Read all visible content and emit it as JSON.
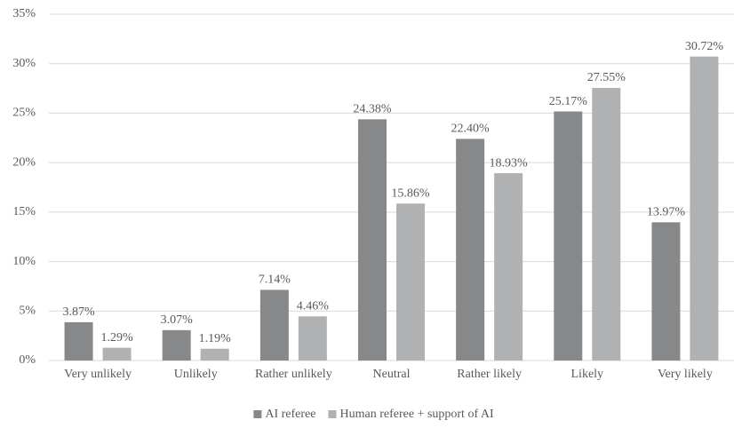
{
  "chart_data": {
    "type": "bar",
    "categories": [
      "Very unlikely",
      "Unlikely",
      "Rather unlikely",
      "Neutral",
      "Rather likely",
      "Likely",
      "Very likely"
    ],
    "series": [
      {
        "name": "AI referee",
        "color": "#87888a",
        "values": [
          3.87,
          3.07,
          7.14,
          24.38,
          22.4,
          25.17,
          13.97
        ],
        "value_labels": [
          "3.87%",
          "3.07%",
          "7.14%",
          "24.38%",
          "22.40%",
          "25.17%",
          "13.97%"
        ]
      },
      {
        "name": "Human referee + support of AI",
        "color": "#b0b1b3",
        "values": [
          1.29,
          1.19,
          4.46,
          15.86,
          18.93,
          27.55,
          30.72
        ],
        "value_labels": [
          "1.29%",
          "1.19%",
          "4.46%",
          "15.86%",
          "18.93%",
          "27.55%",
          "30.72%"
        ]
      }
    ],
    "ylim": [
      0,
      35
    ],
    "yticks": [
      {
        "value": 0,
        "label": "0%"
      },
      {
        "value": 5,
        "label": "5%"
      },
      {
        "value": 10,
        "label": "10%"
      },
      {
        "value": 15,
        "label": "15%"
      },
      {
        "value": 20,
        "label": "20%"
      },
      {
        "value": 25,
        "label": "25%"
      },
      {
        "value": 30,
        "label": "30%"
      },
      {
        "value": 35,
        "label": "35%"
      }
    ],
    "grid": true,
    "legend": "bottom"
  }
}
